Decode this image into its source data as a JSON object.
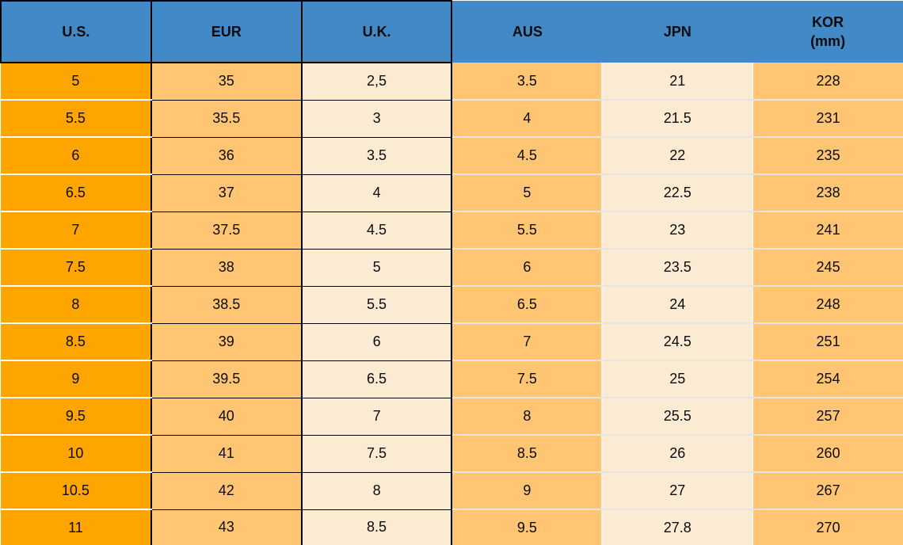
{
  "colors": {
    "header-bg": "#4189C7",
    "us-col": "#FFA500",
    "mid-col": "#FFC572",
    "cream-col": "#FCEBD3",
    "black": "#000000",
    "soft-line": "#E8E4DF",
    "soft-vline": "#F6F2EC"
  },
  "chart_data": {
    "type": "table",
    "title": "",
    "columns": [
      "U.S.",
      "EUR",
      "U.K.",
      "AUS",
      "JPN",
      "KOR (mm)"
    ],
    "header": [
      {
        "key": "us",
        "label": "U.S."
      },
      {
        "key": "eur",
        "label": "EUR"
      },
      {
        "key": "uk",
        "label": "U.K."
      },
      {
        "key": "aus",
        "label": "AUS"
      },
      {
        "key": "jpn",
        "label": "JPN"
      },
      {
        "key": "kor",
        "label": "KOR",
        "sublabel": "(mm)"
      }
    ],
    "rows": [
      [
        "5",
        "35",
        "2,5",
        "3.5",
        "21",
        "228"
      ],
      [
        "5.5",
        "35.5",
        "3",
        "4",
        "21.5",
        "231"
      ],
      [
        "6",
        "36",
        "3.5",
        "4.5",
        "22",
        "235"
      ],
      [
        "6.5",
        "37",
        "4",
        "5",
        "22.5",
        "238"
      ],
      [
        "7",
        "37.5",
        "4.5",
        "5.5",
        "23",
        "241"
      ],
      [
        "7.5",
        "38",
        "5",
        "6",
        "23.5",
        "245"
      ],
      [
        "8",
        "38.5",
        "5.5",
        "6.5",
        "24",
        "248"
      ],
      [
        "8.5",
        "39",
        "6",
        "7",
        "24.5",
        "251"
      ],
      [
        "9",
        "39.5",
        "6.5",
        "7.5",
        "25",
        "254"
      ],
      [
        "9.5",
        "40",
        "7",
        "8",
        "25.5",
        "257"
      ],
      [
        "10",
        "41",
        "7.5",
        "8.5",
        "26",
        "260"
      ],
      [
        "10.5",
        "42",
        "8",
        "9",
        "27",
        "267"
      ],
      [
        "11",
        "43",
        "8.5",
        "9.5",
        "27.8",
        "270"
      ]
    ]
  }
}
